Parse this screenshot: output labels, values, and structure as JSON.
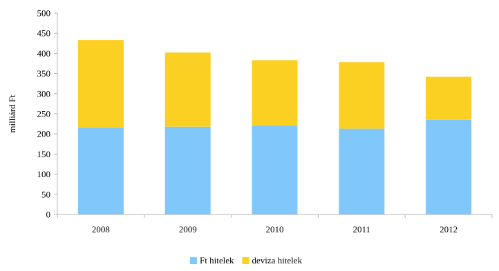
{
  "chart_data": {
    "type": "bar",
    "stacked": true,
    "categories": [
      "2008",
      "2009",
      "2010",
      "2011",
      "2012"
    ],
    "series": [
      {
        "name": "Ft hitelek",
        "color": "#80c8fc",
        "values": [
          216,
          218,
          220,
          213,
          235
        ]
      },
      {
        "name": "deviza hitelek",
        "color": "#fcd022",
        "values": [
          217,
          184,
          163,
          165,
          107
        ]
      }
    ],
    "ylabel": "milliárd Ft",
    "xlabel": "",
    "ylim": [
      0,
      500
    ],
    "yticks": [
      0,
      50,
      100,
      150,
      200,
      250,
      300,
      350,
      400,
      450,
      500
    ],
    "grid": false,
    "legend_position": "bottom"
  }
}
